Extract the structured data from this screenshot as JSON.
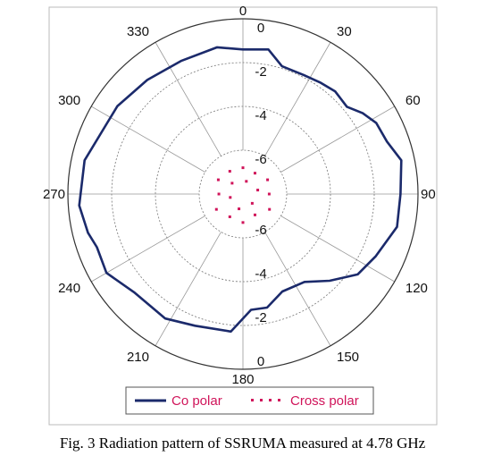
{
  "chart_data": {
    "type": "polar",
    "angle_ticks": [
      {
        "angle": 0,
        "label": "0"
      },
      {
        "angle": 30,
        "label": "30"
      },
      {
        "angle": 60,
        "label": "60"
      },
      {
        "angle": 90,
        "label": "90"
      },
      {
        "angle": 120,
        "label": "120"
      },
      {
        "angle": 150,
        "label": "150"
      },
      {
        "angle": 180,
        "label": "180"
      },
      {
        "angle": 210,
        "label": "210"
      },
      {
        "angle": 240,
        "label": "240"
      },
      {
        "angle": 270,
        "label": "270"
      },
      {
        "angle": 300,
        "label": "300"
      },
      {
        "angle": 330,
        "label": "330"
      }
    ],
    "radial_ticks_upper": [
      "0",
      "-2",
      "-4",
      "-6"
    ],
    "radial_ticks_lower": [
      "-6",
      "-4",
      "-2",
      "0"
    ],
    "radial_levels": [
      0,
      -2,
      -4,
      -6
    ],
    "series": [
      {
        "name": "Co polar",
        "color": "#1b2a6b",
        "style": "solid",
        "points": [
          [
            0,
            -1.4
          ],
          [
            10,
            -1.3
          ],
          [
            17,
            -1.9
          ],
          [
            27,
            -1.9
          ],
          [
            35,
            -1.8
          ],
          [
            42,
            -1.7
          ],
          [
            50,
            -1.8
          ],
          [
            56,
            -1.4
          ],
          [
            62,
            -1.1
          ],
          [
            70,
            -1.0
          ],
          [
            78,
            -0.6
          ],
          [
            90,
            -0.8
          ],
          [
            102,
            -0.8
          ],
          [
            115,
            -1.3
          ],
          [
            125,
            -1.6
          ],
          [
            135,
            -2.4
          ],
          [
            145,
            -3.1
          ],
          [
            158,
            -3.2
          ],
          [
            168,
            -2.7
          ],
          [
            176,
            -2.7
          ],
          [
            185,
            -1.7
          ],
          [
            200,
            -1.6
          ],
          [
            212,
            -1.3
          ],
          [
            228,
            -1.3
          ],
          [
            240,
            -0.8
          ],
          [
            250,
            -0.9
          ],
          [
            256,
            -0.7
          ],
          [
            266,
            -0.5
          ],
          [
            282,
            -0.6
          ],
          [
            298,
            -1.0
          ],
          [
            305,
            -1.0
          ],
          [
            320,
            -1.2
          ],
          [
            335,
            -1.3
          ],
          [
            350,
            -1.2
          ],
          [
            360,
            -1.4
          ]
        ]
      },
      {
        "name": "Cross polar",
        "color": "#d0145a",
        "style": "dotted",
        "points": [
          [
            0,
            -6.8
          ],
          [
            30,
            -6.9
          ],
          [
            60,
            -6.7
          ],
          [
            90,
            -6.8
          ],
          [
            120,
            -6.6
          ],
          [
            150,
            -6.9
          ],
          [
            180,
            -6.7
          ],
          [
            210,
            -6.8
          ],
          [
            240,
            -6.6
          ],
          [
            270,
            -6.9
          ],
          [
            300,
            -6.7
          ],
          [
            330,
            -6.8
          ],
          [
            15,
            -7.4
          ],
          [
            75,
            -7.3
          ],
          [
            135,
            -7.4
          ],
          [
            195,
            -7.3
          ],
          [
            255,
            -7.4
          ],
          [
            315,
            -7.3
          ]
        ]
      }
    ],
    "legend": {
      "placement": "bottom-center",
      "entries": [
        "Co polar",
        "Cross polar"
      ]
    },
    "grid": true
  },
  "caption": "Fig. 3 Radiation pattern of SSRUMA measured at 4.78 GHz"
}
